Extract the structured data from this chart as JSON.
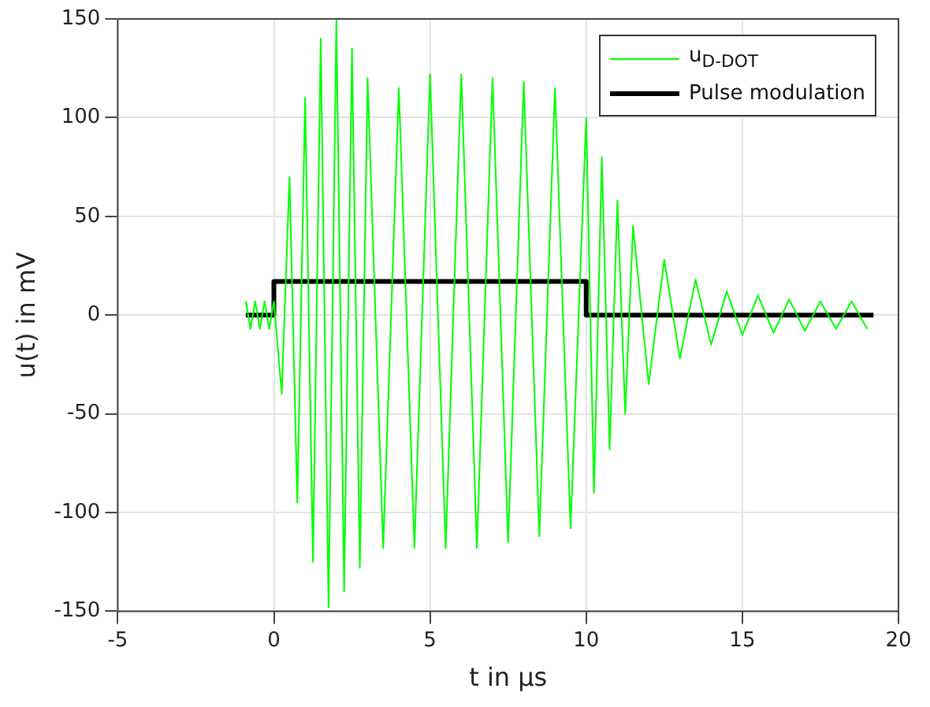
{
  "chart_data": {
    "type": "line",
    "xlabel": "t in µs",
    "ylabel": "u(t) in mV",
    "xlim": [
      -5,
      20
    ],
    "xticks": [
      -5,
      0,
      5,
      10,
      15,
      20
    ],
    "ylim": [
      -150,
      150
    ],
    "yticks": [
      -150,
      -100,
      -50,
      0,
      50,
      100,
      150
    ],
    "grid": true,
    "legend": "top right",
    "marker": "none",
    "line_style": "solid",
    "series": [
      {
        "name": "u$_{D-DOT}$",
        "color": "#00ff00",
        "x": [
          -0.9,
          -0.75,
          -0.6,
          -0.45,
          -0.3,
          -0.15,
          0,
          0.25,
          0.5,
          0.75,
          1,
          1.25,
          1.5,
          1.75,
          2,
          2.25,
          2.5,
          2.75,
          3,
          3.5,
          4,
          4.5,
          5,
          5.5,
          6,
          6.5,
          7,
          7.5,
          8,
          8.5,
          9,
          9.5,
          10,
          10.25,
          10.5,
          10.75,
          11,
          11.25,
          11.5,
          12,
          12.5,
          13,
          13.5,
          14,
          14.5,
          15,
          15.5,
          16,
          16.5,
          17,
          17.5,
          18,
          18.5,
          19
        ],
        "values": [
          7,
          -7,
          7,
          -7,
          7,
          -7,
          7,
          -40,
          70,
          -95,
          110,
          -125,
          140,
          -148,
          150,
          -140,
          135,
          -128,
          120,
          -118,
          115,
          -118,
          122,
          -118,
          122,
          -118,
          120,
          -115,
          118,
          -112,
          115,
          -108,
          100,
          -90,
          80,
          -68,
          58,
          -50,
          45,
          -35,
          28,
          -22,
          18,
          -15,
          12,
          -10,
          10,
          -9,
          8,
          -8,
          7,
          -7,
          7,
          -7
        ]
      },
      {
        "name": "Pulse modulation",
        "color": "#000000",
        "x": [
          -0.9,
          0,
          0,
          10,
          10,
          19.2
        ],
        "values": [
          0,
          0,
          17,
          17,
          0,
          0
        ]
      }
    ]
  }
}
